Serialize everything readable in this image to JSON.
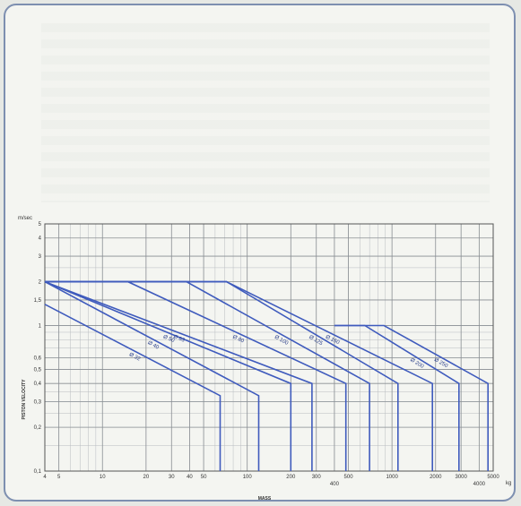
{
  "chart_data": {
    "type": "line",
    "xlabel": "MASS",
    "ylabel": "PISTON VELOCITY",
    "x_unit": "kg",
    "y_unit": "m/sec",
    "x_scale": "log",
    "y_scale": "log",
    "xlim": [
      4,
      5000
    ],
    "ylim": [
      0.1,
      5
    ],
    "grid": true,
    "x_ticks": [
      {
        "v": 4,
        "label": "4"
      },
      {
        "v": 5,
        "label": "5"
      },
      {
        "v": 10,
        "label": "10"
      },
      {
        "v": 20,
        "label": "20"
      },
      {
        "v": 30,
        "label": "30"
      },
      {
        "v": 40,
        "label": "40"
      },
      {
        "v": 50,
        "label": "50"
      },
      {
        "v": 100,
        "label": "100"
      },
      {
        "v": 200,
        "label": "200"
      },
      {
        "v": 300,
        "label": "300"
      },
      {
        "v": 400,
        "label": "400"
      },
      {
        "v": 500,
        "label": "500"
      },
      {
        "v": 1000,
        "label": "1000"
      },
      {
        "v": 2000,
        "label": "2000"
      },
      {
        "v": 3000,
        "label": "3000"
      },
      {
        "v": 4000,
        "label": "4000"
      },
      {
        "v": 5000,
        "label": "5000"
      }
    ],
    "y_ticks": [
      {
        "v": 5,
        "label": "5"
      },
      {
        "v": 4,
        "label": "4"
      },
      {
        "v": 3,
        "label": "3"
      },
      {
        "v": 2,
        "label": "2"
      },
      {
        "v": 1.5,
        "label": "1,5"
      },
      {
        "v": 1,
        "label": "1"
      },
      {
        "v": 0.6,
        "label": "0,6"
      },
      {
        "v": 0.5,
        "label": "0,5"
      },
      {
        "v": 0.4,
        "label": "0,4"
      },
      {
        "v": 0.3,
        "label": "0,3"
      },
      {
        "v": 0.2,
        "label": "0,2"
      },
      {
        "v": 0.1,
        "label": "0,1"
      }
    ],
    "series": [
      {
        "name": "Ø 32",
        "x": [
          4,
          65
        ],
        "y": [
          1.4,
          0.33
        ]
      },
      {
        "name": "Ø 40",
        "x": [
          4,
          120
        ],
        "y": [
          2,
          0.33
        ]
      },
      {
        "name": "Ø 50",
        "x": [
          4,
          200
        ],
        "y": [
          2,
          0.4
        ]
      },
      {
        "name": "Ø 63",
        "x": [
          4,
          280
        ],
        "y": [
          2,
          0.4
        ]
      },
      {
        "name": "Ø 80",
        "x": [
          4,
          15,
          480
        ],
        "y": [
          2,
          2,
          0.4
        ]
      },
      {
        "name": "Ø 100",
        "x": [
          4,
          38,
          700
        ],
        "y": [
          2,
          2,
          0.4
        ]
      },
      {
        "name": "Ø 125",
        "x": [
          4,
          72,
          1100
        ],
        "y": [
          2,
          2,
          0.4
        ]
      },
      {
        "name": "Ø 160",
        "x": [
          4,
          72,
          1900
        ],
        "y": [
          2,
          2,
          0.4
        ]
      },
      {
        "name": "Ø 200",
        "x": [
          400,
          650,
          2900
        ],
        "y": [
          1,
          1,
          0.4
        ]
      },
      {
        "name": "Ø 250",
        "x": [
          400,
          880,
          4600
        ],
        "y": [
          1,
          1,
          0.4
        ]
      }
    ]
  }
}
